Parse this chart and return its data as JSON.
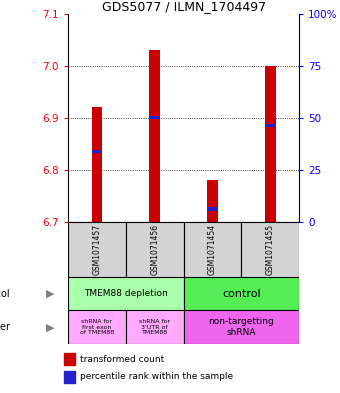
{
  "title": "GDS5077 / ILMN_1704497",
  "samples": [
    "GSM1071457",
    "GSM1071456",
    "GSM1071454",
    "GSM1071455"
  ],
  "bar_bottoms": [
    6.7,
    6.7,
    6.7,
    6.7
  ],
  "bar_tops": [
    6.92,
    7.03,
    6.78,
    7.0
  ],
  "percentile_values": [
    6.835,
    6.9,
    6.725,
    6.885
  ],
  "ylim": [
    6.7,
    7.1
  ],
  "yticks_left": [
    6.7,
    6.8,
    6.9,
    7.0,
    7.1
  ],
  "yticks_right": [
    0,
    25,
    50,
    75,
    100
  ],
  "yticks_right_labels": [
    "0",
    "25",
    "50",
    "75",
    "100%"
  ],
  "bar_color": "#cc0000",
  "percentile_color": "#2222cc",
  "bar_width": 0.18,
  "protocol_label1": "TMEM88 depletion",
  "protocol_label2": "control",
  "protocol_color1": "#aaffaa",
  "protocol_color2": "#55ee55",
  "other_label1": "shRNA for\nfirst exon\nof TMEM88",
  "other_label2": "shRNA for\n3'UTR of\nTMEM88",
  "other_label3": "non-targetting\nshRNA",
  "other_color12": "#ffaaff",
  "other_color3": "#ee66ee",
  "legend_red": "#cc0000",
  "legend_blue": "#2222cc",
  "bg_color": "#ffffff"
}
